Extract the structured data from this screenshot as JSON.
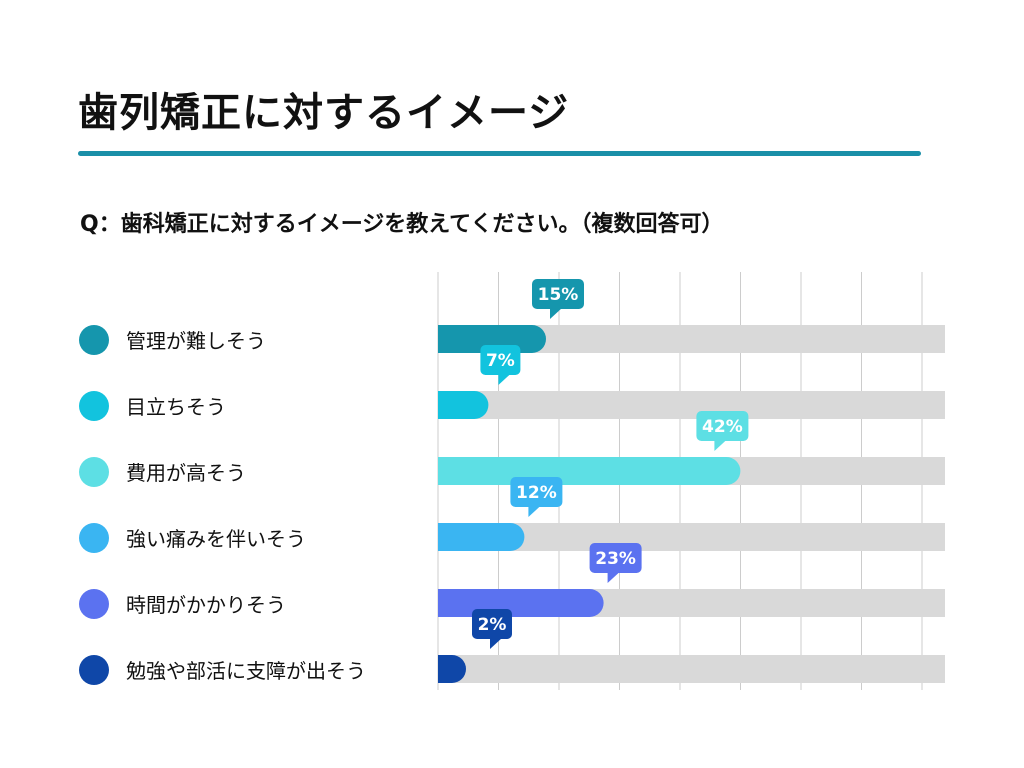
{
  "page": {
    "title": "歯列矯正に対するイメージ",
    "question": "Q：歯科矯正に対するイメージを教えてください。（複数回答可）"
  },
  "chart_data": {
    "type": "bar",
    "orientation": "horizontal",
    "title": "歯列矯正に対するイメージ",
    "xlim": [
      0,
      100
    ],
    "grid": true,
    "value_suffix": "%",
    "categories": [
      "管理が難しそう",
      "目立ちそう",
      "費用が高そう",
      "強い痛みを伴いそう",
      "時間がかかりそう",
      "勉強や部活に支障が出そう"
    ],
    "values": [
      15,
      7,
      42,
      12,
      23,
      2
    ],
    "value_labels": [
      "15%",
      "7%",
      "42%",
      "12%",
      "23%",
      "2%"
    ],
    "colors": [
      "#1596ad",
      "#12c3de",
      "#5ddfe4",
      "#3ab5f2",
      "#5b72f0",
      "#0f47a8"
    ],
    "track_color": "#d9d9d9",
    "grid_color": "#cccccc"
  }
}
